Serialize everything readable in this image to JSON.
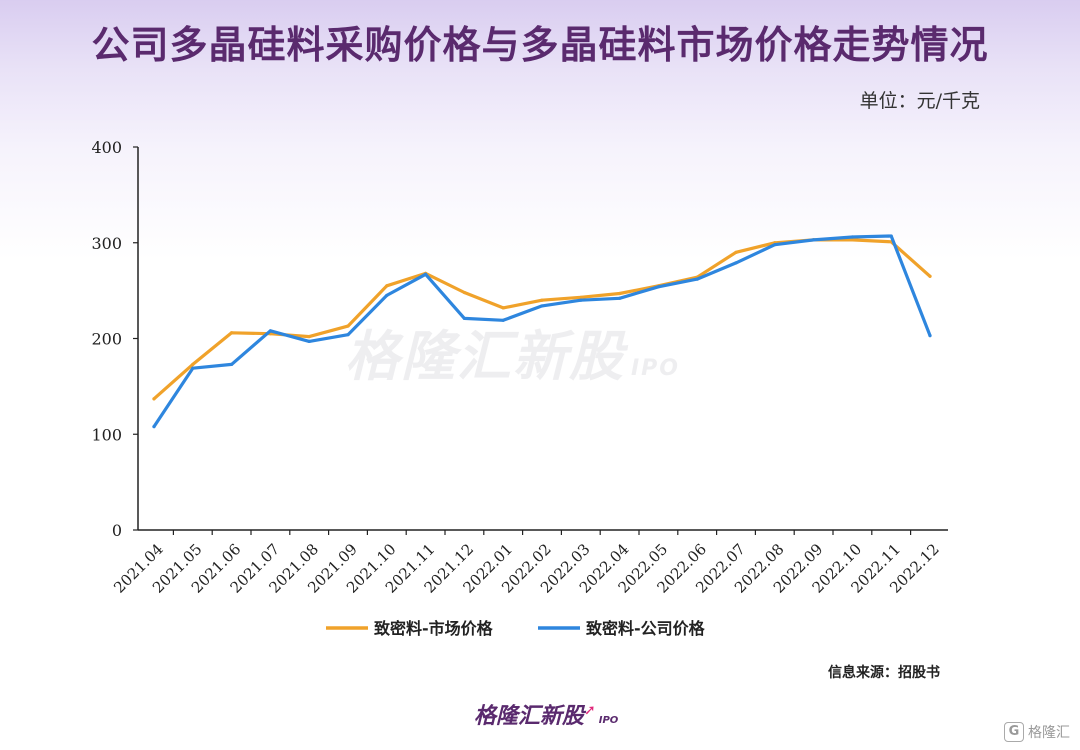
{
  "title": "公司多晶硅料采购价格与多晶硅料市场价格走势情况",
  "unit": "单位：元/千克",
  "source": "信息来源：招股书",
  "brand": {
    "name": "格隆汇新股",
    "suffix": "IPO"
  },
  "watermark": {
    "name": "格隆汇新股",
    "suffix": "IPO"
  },
  "corner_logo": {
    "glyph": "G",
    "text": "格隆汇"
  },
  "chart_data": {
    "type": "line",
    "categories": [
      "2021.04",
      "2021.05",
      "2021.06",
      "2021.07",
      "2021.08",
      "2021.09",
      "2021.10",
      "2021.11",
      "2021.12",
      "2022.01",
      "2022.02",
      "2022.03",
      "2022.04",
      "2022.05",
      "2022.06",
      "2022.07",
      "2022.08",
      "2022.09",
      "2022.10",
      "2022.11",
      "2022.12"
    ],
    "yticks": [
      0,
      100,
      200,
      300,
      400
    ],
    "ylim": [
      0,
      400
    ],
    "grid": false,
    "legend_position": "bottom",
    "series": [
      {
        "name": "致密料-市场价格",
        "color": "#f0a22a",
        "x": [
          "2021.04",
          "2021.05",
          "2021.06",
          "2021.07",
          "2021.08",
          "2021.09",
          "2021.10",
          "2021.11",
          "2021.12",
          "2022.01",
          "2022.02",
          "2022.03",
          "2022.04",
          "2022.05",
          "2022.06",
          "2022.07",
          "2022.08",
          "2022.09",
          "2022.10",
          "2022.11",
          "2022.12"
        ],
        "values": [
          137,
          173,
          206,
          205,
          202,
          213,
          255,
          268,
          248,
          232,
          240,
          243,
          247,
          255,
          264,
          290,
          300,
          303,
          303,
          301,
          265
        ]
      },
      {
        "name": "致密料-公司价格",
        "color": "#2e86de",
        "x": [
          "2021.04",
          "2021.05",
          "2021.06",
          "2021.07",
          "2021.08",
          "2021.09",
          "2021.10",
          "2021.11",
          "2021.12",
          "2022.01",
          "2022.02",
          "2022.03",
          "2022.04",
          "2022.05",
          "2022.06",
          "2022.07",
          "2022.08",
          "2022.09",
          "2022.10",
          "2022.11",
          "2022.12"
        ],
        "values": [
          108,
          169,
          173,
          208,
          197,
          204,
          245,
          267,
          221,
          219,
          234,
          240,
          242,
          254,
          262,
          279,
          298,
          303,
          306,
          307,
          203
        ]
      }
    ]
  }
}
